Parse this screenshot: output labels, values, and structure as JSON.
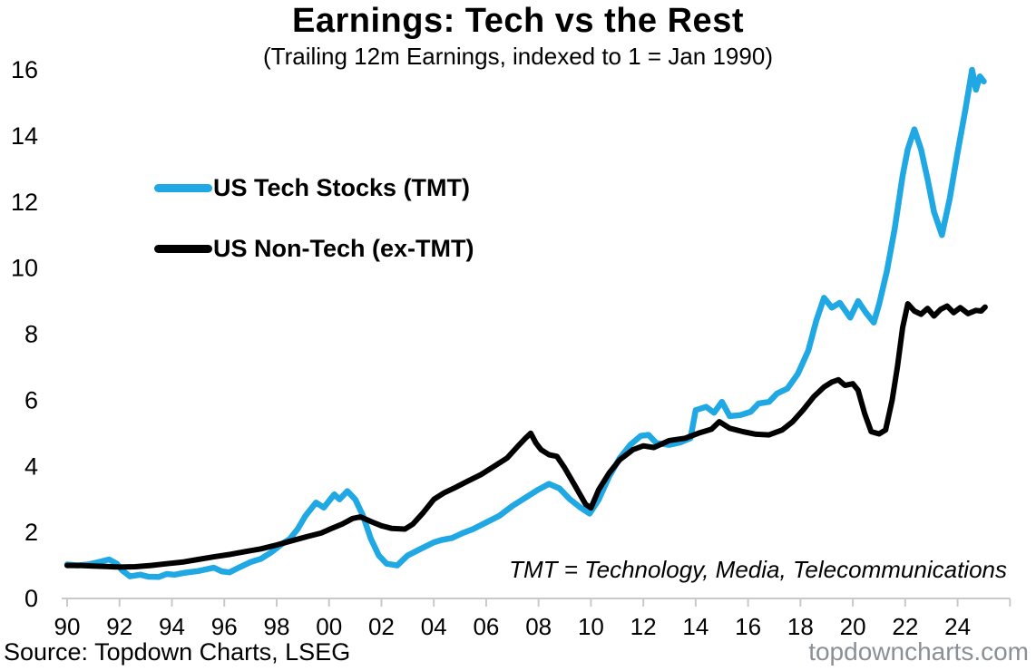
{
  "page": {
    "title": "Earnings: Tech vs the Rest",
    "subtitle": "(Trailing 12m Earnings, indexed to 1 = Jan 1990)"
  },
  "legend": [
    {
      "label": "US Tech Stocks (TMT)",
      "color": "#1FA8E3"
    },
    {
      "label": "US Non-Tech (ex-TMT)",
      "color": "#000000"
    }
  ],
  "annotation": "TMT = Technology, Media, Telecommunications",
  "footer": {
    "source": "Source: Topdown Charts, LSEG",
    "watermark": "topdowncharts.com"
  },
  "colors": {
    "tech": "#1FA8E3",
    "nontech": "#000000",
    "axis": "#C9C9C9",
    "tick_label": "#000000",
    "watermark": "#8A9096"
  },
  "chart_data": {
    "type": "line",
    "title": "Earnings: Tech vs the Rest",
    "subtitle": "(Trailing 12m Earnings, indexed to 1 = Jan 1990)",
    "xlabel": "",
    "ylabel": "",
    "xlim": [
      1989.8,
      2026
    ],
    "ylim": [
      0,
      16
    ],
    "grid": false,
    "legend_position": "upper-left-inside",
    "x_tick_years": [
      1990,
      1992,
      1994,
      1996,
      1998,
      2000,
      2002,
      2004,
      2006,
      2008,
      2010,
      2012,
      2014,
      2016,
      2018,
      2020,
      2022,
      2024
    ],
    "x_tick_labels": [
      "90",
      "92",
      "94",
      "96",
      "98",
      "00",
      "02",
      "04",
      "06",
      "08",
      "10",
      "12",
      "14",
      "16",
      "18",
      "20",
      "22",
      "24"
    ],
    "y_ticks": [
      0,
      2,
      4,
      6,
      8,
      10,
      12,
      14,
      16
    ],
    "series": [
      {
        "name": "US Tech Stocks (TMT)",
        "color": "#1FA8E3",
        "points": [
          [
            1990.0,
            1.03
          ],
          [
            1990.4,
            1.0
          ],
          [
            1990.8,
            1.03
          ],
          [
            1991.2,
            1.1
          ],
          [
            1991.6,
            1.18
          ],
          [
            1991.9,
            1.05
          ],
          [
            1992.1,
            0.85
          ],
          [
            1992.4,
            0.67
          ],
          [
            1992.8,
            0.72
          ],
          [
            1993.1,
            0.66
          ],
          [
            1993.5,
            0.65
          ],
          [
            1993.8,
            0.74
          ],
          [
            1994.1,
            0.72
          ],
          [
            1994.5,
            0.78
          ],
          [
            1995.0,
            0.83
          ],
          [
            1995.6,
            0.93
          ],
          [
            1995.9,
            0.82
          ],
          [
            1996.2,
            0.79
          ],
          [
            1996.6,
            0.95
          ],
          [
            1997.0,
            1.1
          ],
          [
            1997.4,
            1.2
          ],
          [
            1997.8,
            1.4
          ],
          [
            1998.2,
            1.65
          ],
          [
            1998.5,
            1.8
          ],
          [
            1998.8,
            2.1
          ],
          [
            1999.1,
            2.5
          ],
          [
            1999.5,
            2.9
          ],
          [
            1999.8,
            2.75
          ],
          [
            2000.2,
            3.15
          ],
          [
            2000.4,
            3.0
          ],
          [
            2000.7,
            3.25
          ],
          [
            2001.0,
            3.0
          ],
          [
            2001.3,
            2.5
          ],
          [
            2001.6,
            1.8
          ],
          [
            2001.9,
            1.3
          ],
          [
            2002.2,
            1.05
          ],
          [
            2002.6,
            1.0
          ],
          [
            2003.0,
            1.3
          ],
          [
            2003.5,
            1.5
          ],
          [
            2004.0,
            1.7
          ],
          [
            2004.3,
            1.77
          ],
          [
            2004.7,
            1.83
          ],
          [
            2005.1,
            1.98
          ],
          [
            2005.5,
            2.1
          ],
          [
            2006.0,
            2.3
          ],
          [
            2006.5,
            2.5
          ],
          [
            2007.0,
            2.8
          ],
          [
            2007.5,
            3.05
          ],
          [
            2008.0,
            3.3
          ],
          [
            2008.4,
            3.47
          ],
          [
            2008.8,
            3.33
          ],
          [
            2009.2,
            3.0
          ],
          [
            2009.6,
            2.75
          ],
          [
            2009.95,
            2.57
          ],
          [
            2010.3,
            3.0
          ],
          [
            2010.7,
            3.7
          ],
          [
            2011.1,
            4.25
          ],
          [
            2011.5,
            4.65
          ],
          [
            2011.9,
            4.92
          ],
          [
            2012.2,
            4.95
          ],
          [
            2012.5,
            4.7
          ],
          [
            2013.0,
            4.65
          ],
          [
            2013.4,
            4.72
          ],
          [
            2013.8,
            4.85
          ],
          [
            2014.0,
            5.7
          ],
          [
            2014.4,
            5.8
          ],
          [
            2014.7,
            5.62
          ],
          [
            2015.0,
            5.95
          ],
          [
            2015.3,
            5.52
          ],
          [
            2015.7,
            5.55
          ],
          [
            2016.1,
            5.65
          ],
          [
            2016.4,
            5.9
          ],
          [
            2016.8,
            5.95
          ],
          [
            2017.1,
            6.2
          ],
          [
            2017.5,
            6.35
          ],
          [
            2017.9,
            6.8
          ],
          [
            2018.3,
            7.5
          ],
          [
            2018.6,
            8.4
          ],
          [
            2018.9,
            9.1
          ],
          [
            2019.2,
            8.8
          ],
          [
            2019.5,
            8.95
          ],
          [
            2019.9,
            8.5
          ],
          [
            2020.2,
            9.0
          ],
          [
            2020.5,
            8.65
          ],
          [
            2020.8,
            8.35
          ],
          [
            2021.0,
            8.9
          ],
          [
            2021.3,
            9.9
          ],
          [
            2021.6,
            11.2
          ],
          [
            2021.9,
            12.8
          ],
          [
            2022.1,
            13.6
          ],
          [
            2022.35,
            14.2
          ],
          [
            2022.6,
            13.6
          ],
          [
            2022.85,
            12.7
          ],
          [
            2023.1,
            11.7
          ],
          [
            2023.4,
            11.0
          ],
          [
            2023.7,
            12.1
          ],
          [
            2024.0,
            13.5
          ],
          [
            2024.3,
            14.8
          ],
          [
            2024.55,
            16.0
          ],
          [
            2024.7,
            15.4
          ],
          [
            2024.85,
            15.8
          ],
          [
            2025.0,
            15.65
          ]
        ]
      },
      {
        "name": "US Non-Tech (ex-TMT)",
        "color": "#000000",
        "points": [
          [
            1990.0,
            1.0
          ],
          [
            1990.5,
            1.0
          ],
          [
            1991.0,
            0.98
          ],
          [
            1991.5,
            0.97
          ],
          [
            1992.0,
            0.95
          ],
          [
            1992.6,
            0.96
          ],
          [
            1993.2,
            1.0
          ],
          [
            1993.8,
            1.05
          ],
          [
            1994.4,
            1.1
          ],
          [
            1995.0,
            1.18
          ],
          [
            1995.6,
            1.26
          ],
          [
            1996.2,
            1.33
          ],
          [
            1996.8,
            1.42
          ],
          [
            1997.4,
            1.5
          ],
          [
            1998.0,
            1.62
          ],
          [
            1998.6,
            1.75
          ],
          [
            1999.2,
            1.88
          ],
          [
            1999.7,
            1.98
          ],
          [
            2000.1,
            2.12
          ],
          [
            2000.5,
            2.25
          ],
          [
            2000.9,
            2.42
          ],
          [
            2001.2,
            2.47
          ],
          [
            2001.6,
            2.33
          ],
          [
            2002.0,
            2.2
          ],
          [
            2002.4,
            2.12
          ],
          [
            2002.9,
            2.1
          ],
          [
            2003.2,
            2.25
          ],
          [
            2003.6,
            2.6
          ],
          [
            2004.0,
            3.0
          ],
          [
            2004.4,
            3.2
          ],
          [
            2004.8,
            3.35
          ],
          [
            2005.3,
            3.55
          ],
          [
            2005.8,
            3.75
          ],
          [
            2006.3,
            4.0
          ],
          [
            2006.8,
            4.25
          ],
          [
            2007.2,
            4.6
          ],
          [
            2007.5,
            4.85
          ],
          [
            2007.7,
            5.0
          ],
          [
            2007.9,
            4.7
          ],
          [
            2008.1,
            4.5
          ],
          [
            2008.4,
            4.35
          ],
          [
            2008.7,
            4.3
          ],
          [
            2009.0,
            3.95
          ],
          [
            2009.4,
            3.4
          ],
          [
            2009.8,
            2.85
          ],
          [
            2010.0,
            2.74
          ],
          [
            2010.3,
            3.3
          ],
          [
            2010.7,
            3.8
          ],
          [
            2011.1,
            4.2
          ],
          [
            2011.6,
            4.5
          ],
          [
            2012.0,
            4.62
          ],
          [
            2012.4,
            4.57
          ],
          [
            2013.0,
            4.78
          ],
          [
            2013.6,
            4.85
          ],
          [
            2014.1,
            5.0
          ],
          [
            2014.6,
            5.12
          ],
          [
            2014.9,
            5.35
          ],
          [
            2015.3,
            5.15
          ],
          [
            2015.8,
            5.05
          ],
          [
            2016.3,
            4.97
          ],
          [
            2016.8,
            4.95
          ],
          [
            2017.3,
            5.1
          ],
          [
            2017.7,
            5.35
          ],
          [
            2018.1,
            5.7
          ],
          [
            2018.5,
            6.1
          ],
          [
            2018.9,
            6.4
          ],
          [
            2019.2,
            6.55
          ],
          [
            2019.45,
            6.62
          ],
          [
            2019.7,
            6.45
          ],
          [
            2020.0,
            6.5
          ],
          [
            2020.2,
            6.3
          ],
          [
            2020.45,
            5.6
          ],
          [
            2020.7,
            5.05
          ],
          [
            2021.0,
            4.98
          ],
          [
            2021.25,
            5.1
          ],
          [
            2021.5,
            6.0
          ],
          [
            2021.7,
            7.0
          ],
          [
            2021.9,
            8.2
          ],
          [
            2022.1,
            8.92
          ],
          [
            2022.35,
            8.7
          ],
          [
            2022.6,
            8.6
          ],
          [
            2022.85,
            8.78
          ],
          [
            2023.1,
            8.55
          ],
          [
            2023.35,
            8.75
          ],
          [
            2023.6,
            8.85
          ],
          [
            2023.85,
            8.65
          ],
          [
            2024.1,
            8.8
          ],
          [
            2024.4,
            8.62
          ],
          [
            2024.7,
            8.72
          ],
          [
            2024.9,
            8.7
          ],
          [
            2025.05,
            8.82
          ]
        ]
      }
    ]
  }
}
